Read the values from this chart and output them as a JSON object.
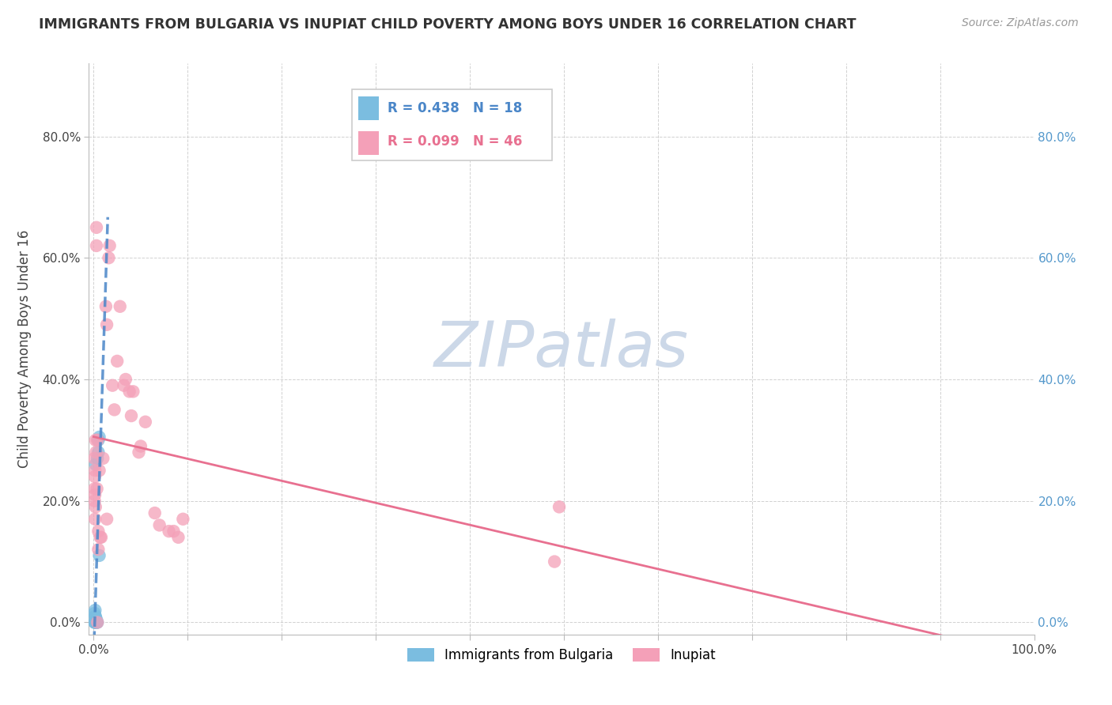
{
  "title": "IMMIGRANTS FROM BULGARIA VS INUPIAT CHILD POVERTY AMONG BOYS UNDER 16 CORRELATION CHART",
  "source": "Source: ZipAtlas.com",
  "ylabel": "Child Poverty Among Boys Under 16",
  "xlabel": "",
  "legend_1_label": "Immigrants from Bulgaria",
  "legend_2_label": "Inupiat",
  "r1": 0.438,
  "n1": 18,
  "r2": 0.099,
  "n2": 46,
  "xlim": [
    -0.005,
    1.0
  ],
  "ylim": [
    -0.02,
    0.92
  ],
  "x_ticks": [
    0.0,
    0.1,
    0.2,
    0.3,
    0.4,
    0.5,
    0.6,
    0.7,
    0.8,
    0.9,
    1.0
  ],
  "x_tick_labels_major": [
    "0.0%",
    "",
    "",
    "",
    "",
    "",
    "",
    "",
    "",
    "",
    "100.0%"
  ],
  "y_ticks": [
    0.0,
    0.2,
    0.4,
    0.6,
    0.8
  ],
  "y_tick_labels": [
    "0.0%",
    "20.0%",
    "40.0%",
    "60.0%",
    "80.0%"
  ],
  "right_y_tick_labels": [
    "0.0%",
    "20.0%",
    "40.0%",
    "60.0%",
    "80.0%"
  ],
  "color_blue": "#7bbde0",
  "color_pink": "#f4a0b8",
  "color_trendline_blue": "#4a86c8",
  "color_trendline_pink": "#e87090",
  "watermark_color": "#ccd8e8",
  "bg_color": "#ffffff",
  "blue_points": [
    [
      0.0008,
      0.0
    ],
    [
      0.001,
      0.015
    ],
    [
      0.0012,
      0.0
    ],
    [
      0.0014,
      0.01
    ],
    [
      0.0015,
      0.0
    ],
    [
      0.0016,
      0.02
    ],
    [
      0.002,
      0.01
    ],
    [
      0.002,
      0.26
    ],
    [
      0.0025,
      0.0
    ],
    [
      0.003,
      0.0
    ],
    [
      0.003,
      0.005
    ],
    [
      0.0035,
      0.0
    ],
    [
      0.004,
      0.0
    ],
    [
      0.004,
      0.27
    ],
    [
      0.005,
      0.28
    ],
    [
      0.005,
      0.3
    ],
    [
      0.006,
      0.305
    ],
    [
      0.006,
      0.11
    ]
  ],
  "pink_points": [
    [
      0.0008,
      0.27
    ],
    [
      0.001,
      0.22
    ],
    [
      0.001,
      0.2
    ],
    [
      0.0012,
      0.24
    ],
    [
      0.0014,
      0.21
    ],
    [
      0.0015,
      0.17
    ],
    [
      0.0016,
      0.25
    ],
    [
      0.002,
      0.19
    ],
    [
      0.002,
      0.3
    ],
    [
      0.0025,
      0.28
    ],
    [
      0.003,
      0.62
    ],
    [
      0.003,
      0.65
    ],
    [
      0.0035,
      0.22
    ],
    [
      0.004,
      0.3
    ],
    [
      0.004,
      0.0
    ],
    [
      0.005,
      0.12
    ],
    [
      0.005,
      0.15
    ],
    [
      0.006,
      0.25
    ],
    [
      0.007,
      0.14
    ],
    [
      0.008,
      0.14
    ],
    [
      0.01,
      0.27
    ],
    [
      0.013,
      0.52
    ],
    [
      0.014,
      0.49
    ],
    [
      0.014,
      0.17
    ],
    [
      0.016,
      0.6
    ],
    [
      0.017,
      0.62
    ],
    [
      0.02,
      0.39
    ],
    [
      0.022,
      0.35
    ],
    [
      0.025,
      0.43
    ],
    [
      0.028,
      0.52
    ],
    [
      0.032,
      0.39
    ],
    [
      0.034,
      0.4
    ],
    [
      0.038,
      0.38
    ],
    [
      0.04,
      0.34
    ],
    [
      0.042,
      0.38
    ],
    [
      0.048,
      0.28
    ],
    [
      0.05,
      0.29
    ],
    [
      0.055,
      0.33
    ],
    [
      0.065,
      0.18
    ],
    [
      0.07,
      0.16
    ],
    [
      0.08,
      0.15
    ],
    [
      0.085,
      0.15
    ],
    [
      0.09,
      0.14
    ],
    [
      0.095,
      0.17
    ],
    [
      0.49,
      0.1
    ],
    [
      0.495,
      0.19
    ]
  ]
}
